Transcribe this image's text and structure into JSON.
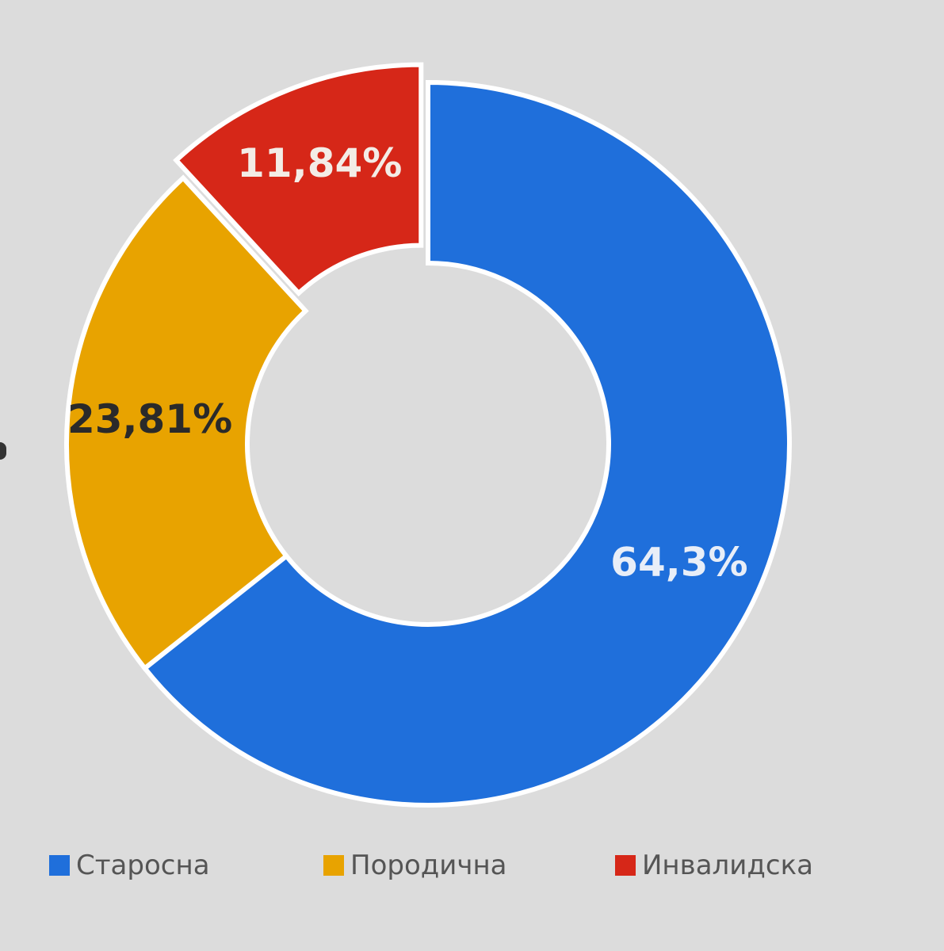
{
  "chart_data": {
    "type": "pie",
    "variant": "donut",
    "categories": [
      "Старосна",
      "Породична",
      "Инвалидска"
    ],
    "values": [
      64.3,
      23.81,
      11.84
    ],
    "value_labels": [
      "64,3%",
      "23,81%",
      "11,84%"
    ],
    "colors": [
      "#1f6fdb",
      "#e8a300",
      "#d62718"
    ],
    "label_colors": [
      "#e8eef8",
      "#2a2a2a",
      "#f3ece6"
    ],
    "exploded": [
      false,
      false,
      true
    ],
    "legend": {
      "placement": "bottom",
      "entries": [
        {
          "label": "Старосна",
          "color": "#1f6fdb"
        },
        {
          "label": "Породична",
          "color": "#e8a300"
        },
        {
          "label": "Инвалидска",
          "color": "#d62718"
        }
      ]
    }
  }
}
